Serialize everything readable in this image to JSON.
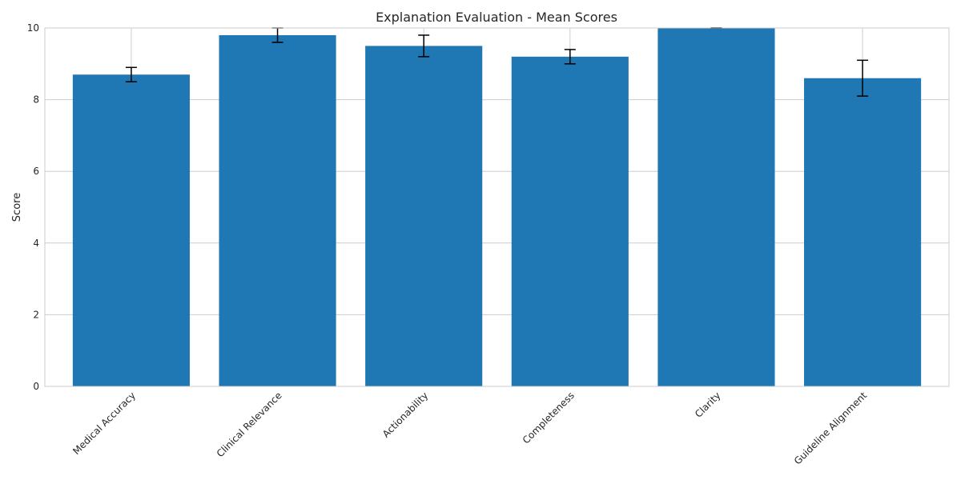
{
  "chart_data": {
    "type": "bar",
    "title": "Explanation Evaluation - Mean Scores",
    "xlabel": "",
    "ylabel": "Score",
    "categories": [
      "Medical Accuracy",
      "Clinical Relevance",
      "Actionability",
      "Completeness",
      "Clarity",
      "Guideline Alignment"
    ],
    "values": [
      8.7,
      9.8,
      9.5,
      9.2,
      10.0,
      8.6
    ],
    "error": [
      0.2,
      0.2,
      0.3,
      0.2,
      0.0,
      0.5
    ],
    "ylim": [
      0,
      10
    ],
    "yticks": [
      "0",
      "2",
      "4",
      "6",
      "8",
      "10"
    ],
    "grid": true,
    "bar_color": "#1f77b4"
  }
}
